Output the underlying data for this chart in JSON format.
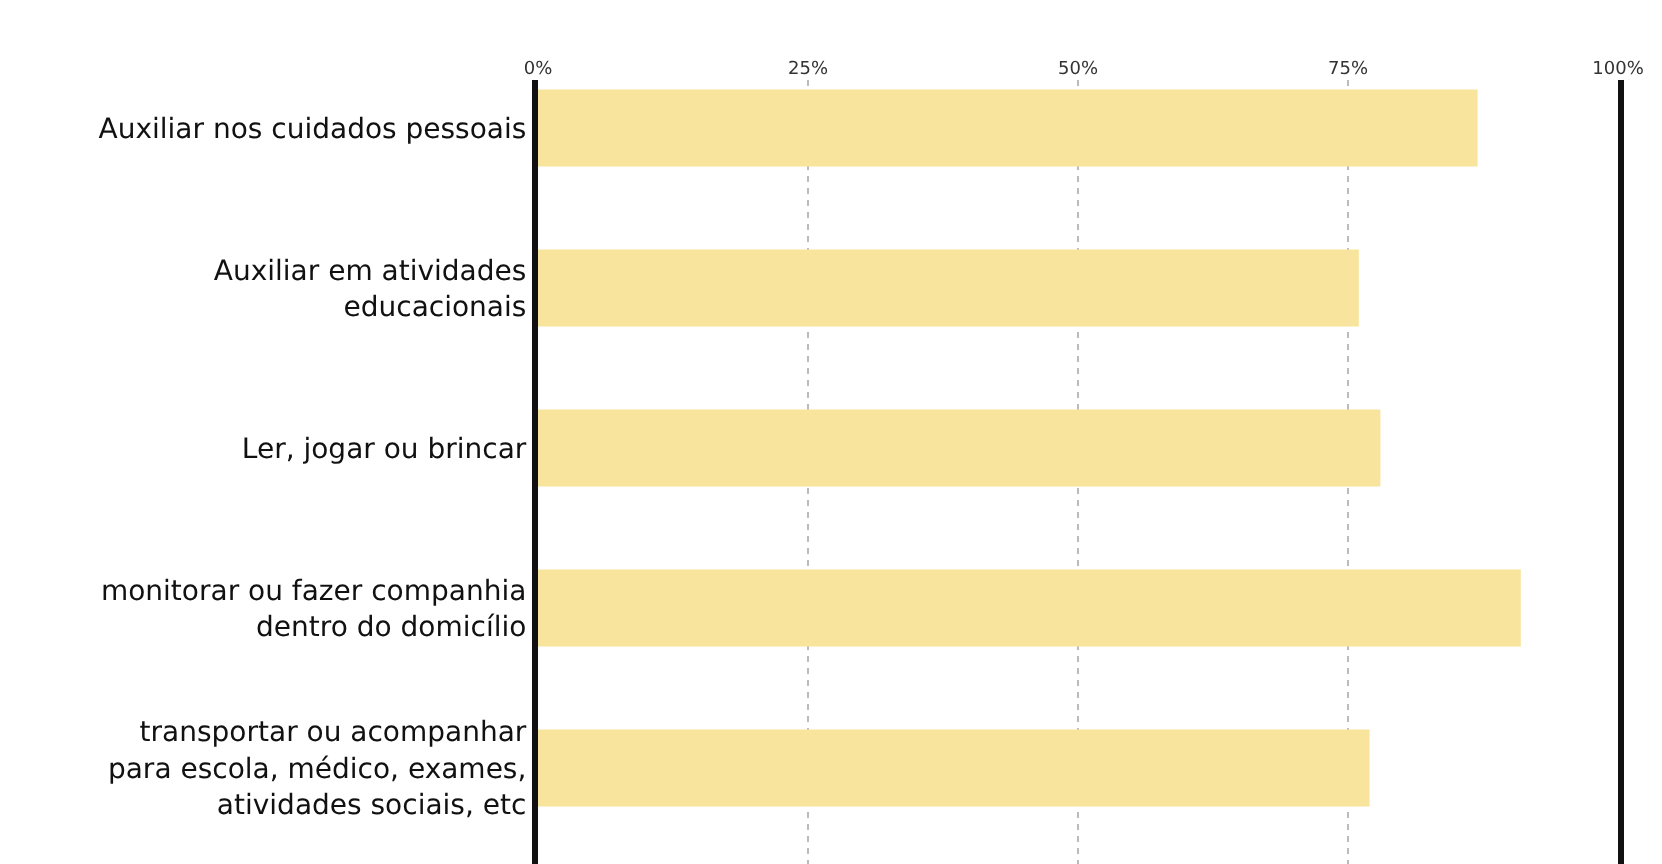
{
  "chart_data": {
    "type": "bar",
    "orientation": "horizontal",
    "categories": [
      "Auxiliar nos cuidados pessoais",
      "Auxiliar em atividades\neducacionais",
      "Ler, jogar ou brincar",
      "monitorar ou fazer companhia\ndentro do domicílio",
      "transportar ou acompanhar\npara escola, médico, exames,\natividades sociais, etc"
    ],
    "values": [
      87,
      76,
      78,
      91,
      77
    ],
    "color": "#f8e49c",
    "xlim": [
      0,
      100
    ],
    "xticks": [
      {
        "value": 0,
        "label": "0%"
      },
      {
        "value": 25,
        "label": "25%"
      },
      {
        "value": 50,
        "label": "50%"
      },
      {
        "value": 75,
        "label": "75%"
      },
      {
        "value": 100,
        "label": "100%"
      }
    ],
    "grid": "x"
  }
}
